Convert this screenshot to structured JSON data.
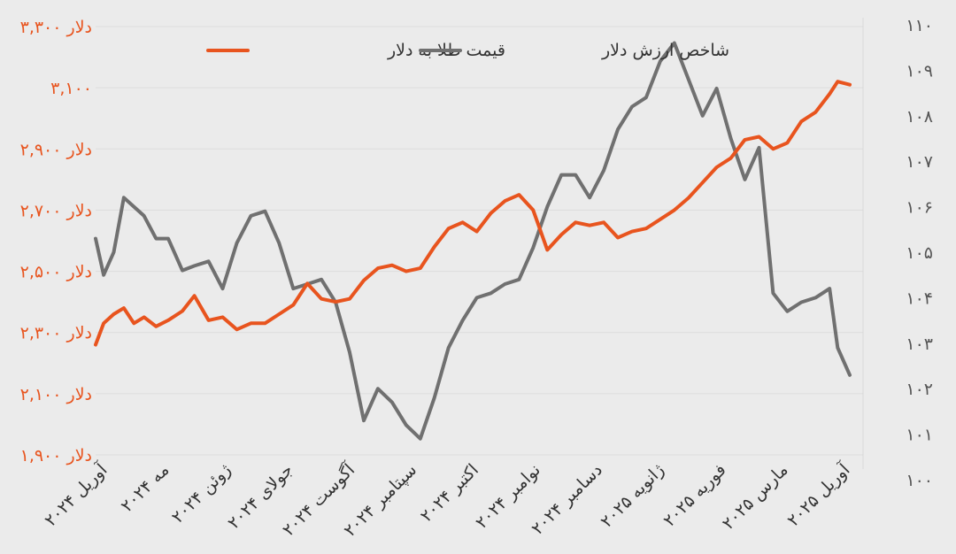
{
  "chart_data": {
    "type": "line",
    "x_start": "2024-04-01",
    "x_end": "2025-04-10",
    "x_tick_labels": [
      "آوریل ۲۰۲۴",
      "مه ۲۰۲۴",
      "ژوئن ۲۰۲۴",
      "جولای ۲۰۲۴",
      "آگوست ۲۰۲۴",
      "سپتامبر ۲۰۲۴",
      "اکتبر ۲۰۲۴",
      "نوامبر ۲۰۲۴",
      "دسامبر ۲۰۲۴",
      "ژانویه ۲۰۲۵",
      "فوریه ۲۰۲۵",
      "مارس ۲۰۲۵",
      "آوریل ۲۰۲۵"
    ],
    "left_axis": {
      "ylim": [
        1900,
        3300
      ],
      "tick_labels": [
        "۱,۹۰۰ دلار",
        "۲,۱۰۰ دلار",
        "۲,۳۰۰ دلار",
        "۲,۵۰۰ دلار",
        "۲,۷۰۰ دلار",
        "۲,۹۰۰ دلار",
        "۳,۱۰۰",
        "۳,۳۰۰ دلار"
      ],
      "color": "#e8541e"
    },
    "right_axis": {
      "ylim": [
        100,
        110
      ],
      "tick_labels": [
        "۱۰۰",
        "۱۰۱",
        "۱۰۲",
        "۱۰۳",
        "۱۰۴",
        "۱۰۵",
        "۱۰۶",
        "۱۰۷",
        "۱۰۸",
        "۱۰۹",
        "۱۱۰"
      ],
      "color": "#555555"
    },
    "grid": true,
    "legend_position": "top",
    "series": [
      {
        "name": "قیمت طلا به دلار",
        "axis": "left",
        "color": "#e8541e",
        "x": [
          "2024-04-01",
          "2024-04-05",
          "2024-04-10",
          "2024-04-15",
          "2024-04-20",
          "2024-04-25",
          "2024-05-01",
          "2024-05-07",
          "2024-05-14",
          "2024-05-20",
          "2024-05-27",
          "2024-06-03",
          "2024-06-10",
          "2024-06-17",
          "2024-06-24",
          "2024-07-01",
          "2024-07-08",
          "2024-07-15",
          "2024-07-22",
          "2024-07-29",
          "2024-08-05",
          "2024-08-12",
          "2024-08-19",
          "2024-08-26",
          "2024-09-02",
          "2024-09-09",
          "2024-09-16",
          "2024-09-23",
          "2024-09-30",
          "2024-10-07",
          "2024-10-14",
          "2024-10-21",
          "2024-10-28",
          "2024-11-04",
          "2024-11-11",
          "2024-11-18",
          "2024-11-25",
          "2024-12-02",
          "2024-12-09",
          "2024-12-16",
          "2024-12-23",
          "2024-12-30",
          "2025-01-06",
          "2025-01-13",
          "2025-01-20",
          "2025-01-27",
          "2025-02-03",
          "2025-02-10",
          "2025-02-17",
          "2025-02-24",
          "2025-03-03",
          "2025-03-10",
          "2025-03-17",
          "2025-03-24",
          "2025-03-31",
          "2025-04-04",
          "2025-04-10"
        ],
        "values": [
          2260,
          2330,
          2360,
          2380,
          2330,
          2350,
          2320,
          2340,
          2370,
          2420,
          2340,
          2350,
          2310,
          2330,
          2330,
          2360,
          2390,
          2460,
          2410,
          2400,
          2410,
          2470,
          2510,
          2520,
          2500,
          2510,
          2580,
          2640,
          2660,
          2630,
          2690,
          2730,
          2750,
          2700,
          2570,
          2620,
          2660,
          2650,
          2660,
          2610,
          2630,
          2640,
          2670,
          2700,
          2740,
          2790,
          2840,
          2870,
          2930,
          2940,
          2900,
          2920,
          2990,
          3020,
          3080,
          3120,
          3110
        ]
      },
      {
        "name": "شاخص ارزش دلار",
        "axis": "right",
        "color": "#707070",
        "x": [
          "2024-04-01",
          "2024-04-05",
          "2024-04-10",
          "2024-04-15",
          "2024-04-20",
          "2024-04-25",
          "2024-05-01",
          "2024-05-07",
          "2024-05-14",
          "2024-05-20",
          "2024-05-27",
          "2024-06-03",
          "2024-06-10",
          "2024-06-17",
          "2024-06-24",
          "2024-07-01",
          "2024-07-08",
          "2024-07-15",
          "2024-07-22",
          "2024-07-29",
          "2024-08-05",
          "2024-08-12",
          "2024-08-19",
          "2024-08-26",
          "2024-09-02",
          "2024-09-09",
          "2024-09-16",
          "2024-09-23",
          "2024-09-30",
          "2024-10-07",
          "2024-10-14",
          "2024-10-21",
          "2024-10-28",
          "2024-11-04",
          "2024-11-11",
          "2024-11-18",
          "2024-11-25",
          "2024-12-02",
          "2024-12-09",
          "2024-12-16",
          "2024-12-23",
          "2024-12-30",
          "2025-01-06",
          "2025-01-13",
          "2025-01-20",
          "2025-01-27",
          "2025-02-03",
          "2025-02-10",
          "2025-02-17",
          "2025-02-24",
          "2025-03-03",
          "2025-03-10",
          "2025-03-17",
          "2025-03-24",
          "2025-03-31",
          "2025-04-04",
          "2025-04-10"
        ],
        "values": [
          105.3,
          104.5,
          105.0,
          106.2,
          106.0,
          105.8,
          105.3,
          105.3,
          104.6,
          104.7,
          104.8,
          104.2,
          105.2,
          105.8,
          105.9,
          105.2,
          104.2,
          104.3,
          104.4,
          103.9,
          102.8,
          101.3,
          102.0,
          101.7,
          101.2,
          100.9,
          101.8,
          102.9,
          103.5,
          104.0,
          104.1,
          104.3,
          104.4,
          105.1,
          106.0,
          106.7,
          106.7,
          106.2,
          106.8,
          107.7,
          108.2,
          108.4,
          109.2,
          109.6,
          108.8,
          108.0,
          108.6,
          107.5,
          106.6,
          107.3,
          104.1,
          103.7,
          103.9,
          104.0,
          104.2,
          102.9,
          102.3
        ]
      }
    ]
  }
}
